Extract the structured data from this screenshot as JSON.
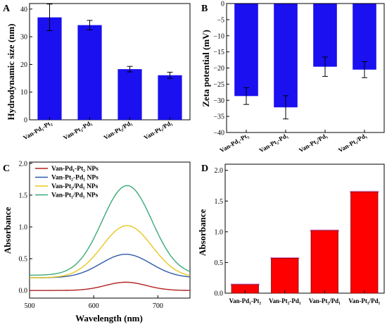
{
  "colors": {
    "bar_blue": "#1a10f0",
    "bar_red": "#ff0000",
    "bar_highlight": "#e8a0e0"
  },
  "chart_data": [
    {
      "panel": "A",
      "type": "bar",
      "ylabel": "Hydrodynamic size (nm)",
      "ylim": [
        0,
        42
      ],
      "yticks": [
        "0",
        "10",
        "20",
        "30",
        "40"
      ],
      "categories": [
        "Van-Pd₁-Pt₂",
        "Van-Pt₂-Pd₁",
        "Van-Pt₂/Pd₁",
        "Van-Pt₁/Pd₁"
      ],
      "values": [
        37,
        34.2,
        18.3,
        16.1
      ],
      "errors": [
        4.8,
        1.7,
        1.0,
        1.1
      ],
      "color": "#1a10f0"
    },
    {
      "panel": "B",
      "type": "bar",
      "ylabel": "Zeta potential (mV)",
      "ylim": [
        -40,
        0
      ],
      "yticks": [
        "0",
        "−5",
        "−10",
        "−15",
        "−20",
        "−25",
        "−30",
        "−35",
        "−40"
      ],
      "categories": [
        "Van-Pd₁-Pt₂",
        "Van-Pt₂-Pd₁",
        "Van-Pt₂/Pd₁",
        "Van-Pt₁/Pd₁"
      ],
      "values": [
        -28.7,
        -32.2,
        -19.6,
        -20.5
      ],
      "errors": [
        2.6,
        3.6,
        3.0,
        2.5
      ],
      "color": "#1a10f0"
    },
    {
      "panel": "C",
      "type": "line",
      "xlabel": "Wavelength (nm)",
      "ylabel": "Absorbance",
      "xlim": [
        500,
        750
      ],
      "ylim": [
        -0.12,
        2.02
      ],
      "xticks": [
        "500",
        "600",
        "700"
      ],
      "yticks": [
        "0.0",
        "0.5",
        "1.0",
        "1.5",
        "2.0"
      ],
      "legend_position": "top-left",
      "series": [
        {
          "name": "Van-Pd₁-Pt₂ NPs",
          "color": "#b02020",
          "peak": 0.13,
          "baseline": 0.0,
          "center": 650,
          "width": 45,
          "x": [
            500,
            525,
            550,
            575,
            600,
            625,
            650,
            675,
            700,
            725,
            750
          ],
          "values": [
            0.02,
            0.03,
            0.04,
            0.06,
            0.09,
            0.12,
            0.13,
            0.12,
            0.08,
            0.05,
            0.03
          ]
        },
        {
          "name": "Van-Pt₂-Pd₁ NPs",
          "color": "#2f5aa8",
          "peak": 0.57,
          "baseline": 0.2,
          "center": 650,
          "width": 55,
          "x": [
            500,
            525,
            550,
            575,
            600,
            625,
            650,
            675,
            700,
            725,
            750
          ],
          "values": [
            0.21,
            0.23,
            0.27,
            0.34,
            0.44,
            0.54,
            0.57,
            0.54,
            0.44,
            0.34,
            0.27
          ]
        },
        {
          "name": "Van-Pt₂/Pd₁ NPs",
          "color": "#e6c81e",
          "peak": 1.02,
          "baseline": 0.2,
          "center": 652,
          "width": 55,
          "x": [
            500,
            525,
            550,
            575,
            600,
            625,
            650,
            675,
            700,
            725,
            750
          ],
          "values": [
            0.2,
            0.23,
            0.3,
            0.45,
            0.66,
            0.9,
            1.02,
            0.94,
            0.72,
            0.5,
            0.33
          ]
        },
        {
          "name": "Van-Pt₁/Pd₁ NPs",
          "color": "#3aaa78",
          "peak": 1.65,
          "baseline": 0.24,
          "center": 652,
          "width": 55,
          "x": [
            500,
            525,
            550,
            575,
            600,
            625,
            650,
            675,
            700,
            725,
            750
          ],
          "values": [
            0.25,
            0.3,
            0.42,
            0.68,
            1.05,
            1.45,
            1.65,
            1.5,
            1.12,
            0.74,
            0.45
          ]
        }
      ]
    },
    {
      "panel": "D",
      "type": "bar",
      "ylabel": "Absorbance",
      "ylim": [
        0,
        2.1
      ],
      "yticks": [
        "0.0",
        "0.5",
        "1.0",
        "1.5",
        "2.0"
      ],
      "categories": [
        "Van-Pd₁-Pt₂",
        "Van-Pt₂-Pd₁",
        "Van-Pt₂/Pd₁",
        "Van-Pt₁/Pd₁"
      ],
      "values": [
        0.14,
        0.57,
        1.02,
        1.65
      ],
      "color": "#ff0000"
    }
  ]
}
